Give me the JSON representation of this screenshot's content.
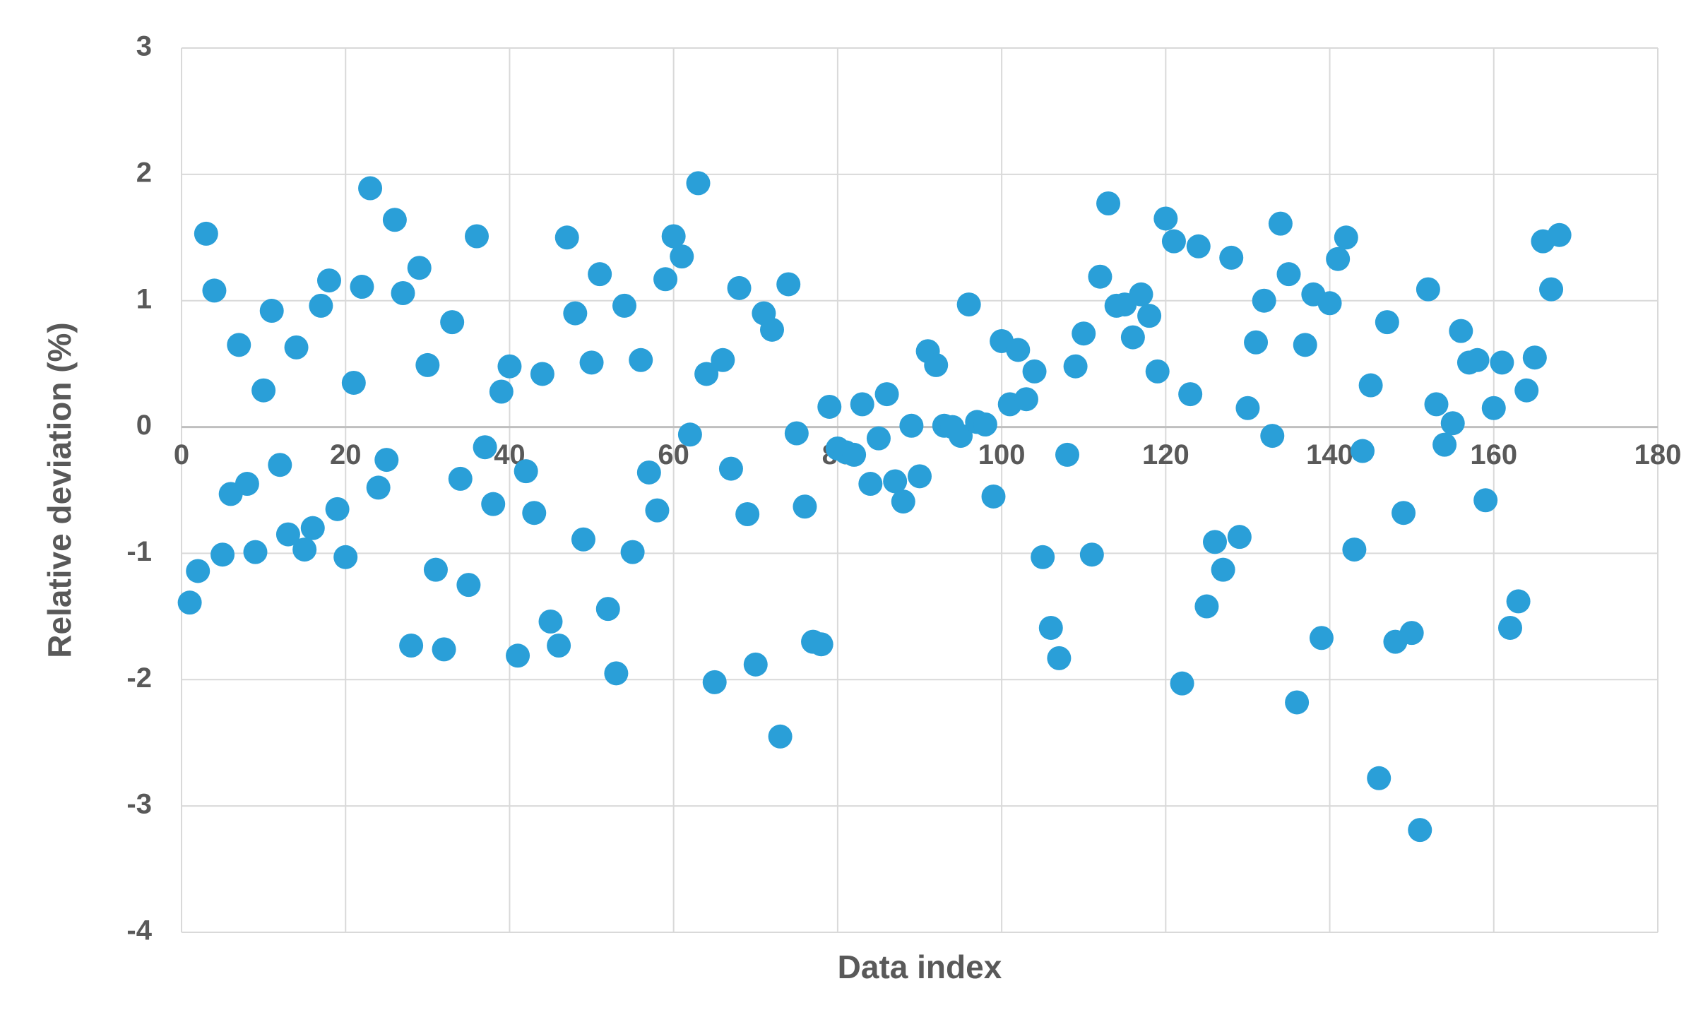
{
  "chart_data": {
    "type": "scatter",
    "x_label": "Data index",
    "y_label": "Relative deviation (%)",
    "color": "#2a9fd8",
    "grid": true,
    "xlim": [
      0,
      180
    ],
    "xticks": [
      0,
      20,
      40,
      60,
      80,
      100,
      120,
      140,
      160,
      180
    ],
    "ylim": [
      -4,
      3
    ],
    "yticks": [
      -4,
      -3,
      -2,
      -1,
      0,
      1,
      2,
      3
    ],
    "x": [
      1,
      2,
      3,
      4,
      5,
      6,
      7,
      8,
      9,
      10,
      11,
      12,
      13,
      14,
      15,
      16,
      17,
      18,
      19,
      20,
      21,
      22,
      23,
      24,
      25,
      26,
      27,
      28,
      29,
      30,
      31,
      32,
      33,
      34,
      35,
      36,
      37,
      38,
      39,
      40,
      41,
      42,
      43,
      44,
      45,
      46,
      47,
      48,
      49,
      50,
      51,
      52,
      53,
      54,
      55,
      56,
      57,
      58,
      59,
      60,
      61,
      62,
      63,
      64,
      65,
      66,
      67,
      68,
      69,
      70,
      71,
      72,
      73,
      74,
      75,
      76,
      77,
      78,
      79,
      80,
      81,
      82,
      83,
      84,
      85,
      86,
      87,
      88,
      89,
      90,
      91,
      92,
      93,
      94,
      95,
      96,
      97,
      98,
      99,
      100,
      101,
      102,
      103,
      104,
      105,
      106,
      107,
      108,
      109,
      110,
      111,
      112,
      113,
      114,
      115,
      116,
      117,
      118,
      119,
      120,
      121,
      122,
      123,
      124,
      125,
      126,
      127,
      128,
      129,
      130,
      131,
      132,
      133,
      134,
      135,
      136,
      137,
      138,
      139,
      140,
      141,
      142,
      143,
      144,
      145,
      146,
      147,
      148,
      149,
      150,
      151,
      152,
      153,
      154,
      155,
      156,
      157,
      158,
      159,
      160,
      161,
      162,
      163,
      164,
      165,
      166,
      167,
      168
    ],
    "values": [
      -1.39,
      -1.14,
      1.53,
      1.08,
      -1.01,
      -0.53,
      0.65,
      -0.45,
      -0.99,
      0.29,
      0.92,
      -0.3,
      -0.85,
      0.63,
      -0.97,
      -0.8,
      0.96,
      1.16,
      -0.65,
      -1.03,
      0.35,
      1.11,
      1.89,
      -0.48,
      -0.26,
      1.64,
      1.06,
      -1.73,
      1.26,
      0.49,
      -1.13,
      -1.76,
      0.83,
      -0.41,
      -1.25,
      1.51,
      -0.16,
      -0.61,
      0.28,
      0.48,
      -1.81,
      -0.35,
      -0.68,
      0.42,
      -1.54,
      -1.73,
      1.5,
      0.9,
      -0.89,
      0.51,
      1.21,
      -1.44,
      -1.95,
      0.96,
      -0.99,
      0.53,
      -0.36,
      -0.66,
      1.17,
      1.51,
      1.35,
      -0.06,
      1.93,
      0.42,
      -2.02,
      0.53,
      -0.33,
      1.1,
      -0.69,
      -1.88,
      0.9,
      0.77,
      -2.45,
      1.13,
      -0.05,
      -0.63,
      -1.7,
      -1.72,
      0.16,
      -0.17,
      -0.2,
      -0.22,
      0.18,
      -0.45,
      -0.09,
      0.26,
      -0.43,
      -0.59,
      0.01,
      -0.39,
      0.6,
      0.49,
      0.01,
      0.0,
      -0.07,
      0.97,
      0.04,
      0.02,
      -0.55,
      0.68,
      0.18,
      0.61,
      0.22,
      0.44,
      -1.03,
      -1.59,
      -1.83,
      -0.22,
      0.48,
      0.74,
      -1.01,
      1.19,
      1.77,
      0.96,
      0.97,
      0.71,
      1.05,
      0.88,
      0.44,
      1.65,
      1.47,
      -2.03,
      0.26,
      1.43,
      -1.42,
      -0.91,
      -1.13,
      1.34,
      -0.87,
      0.15,
      0.67,
      1.0,
      -0.07,
      1.61,
      1.21,
      -2.18,
      0.65,
      1.05,
      -1.67,
      0.98,
      1.33,
      1.5,
      -0.97,
      -0.19,
      0.33,
      -2.78,
      0.83,
      -1.7,
      -0.68,
      -1.63,
      -3.19,
      1.09,
      0.18,
      -0.14,
      0.03,
      0.76,
      0.51,
      0.53,
      -0.58,
      0.15,
      0.51,
      -1.59,
      -1.38,
      0.29,
      0.55,
      1.47,
      1.09,
      1.52
    ]
  }
}
